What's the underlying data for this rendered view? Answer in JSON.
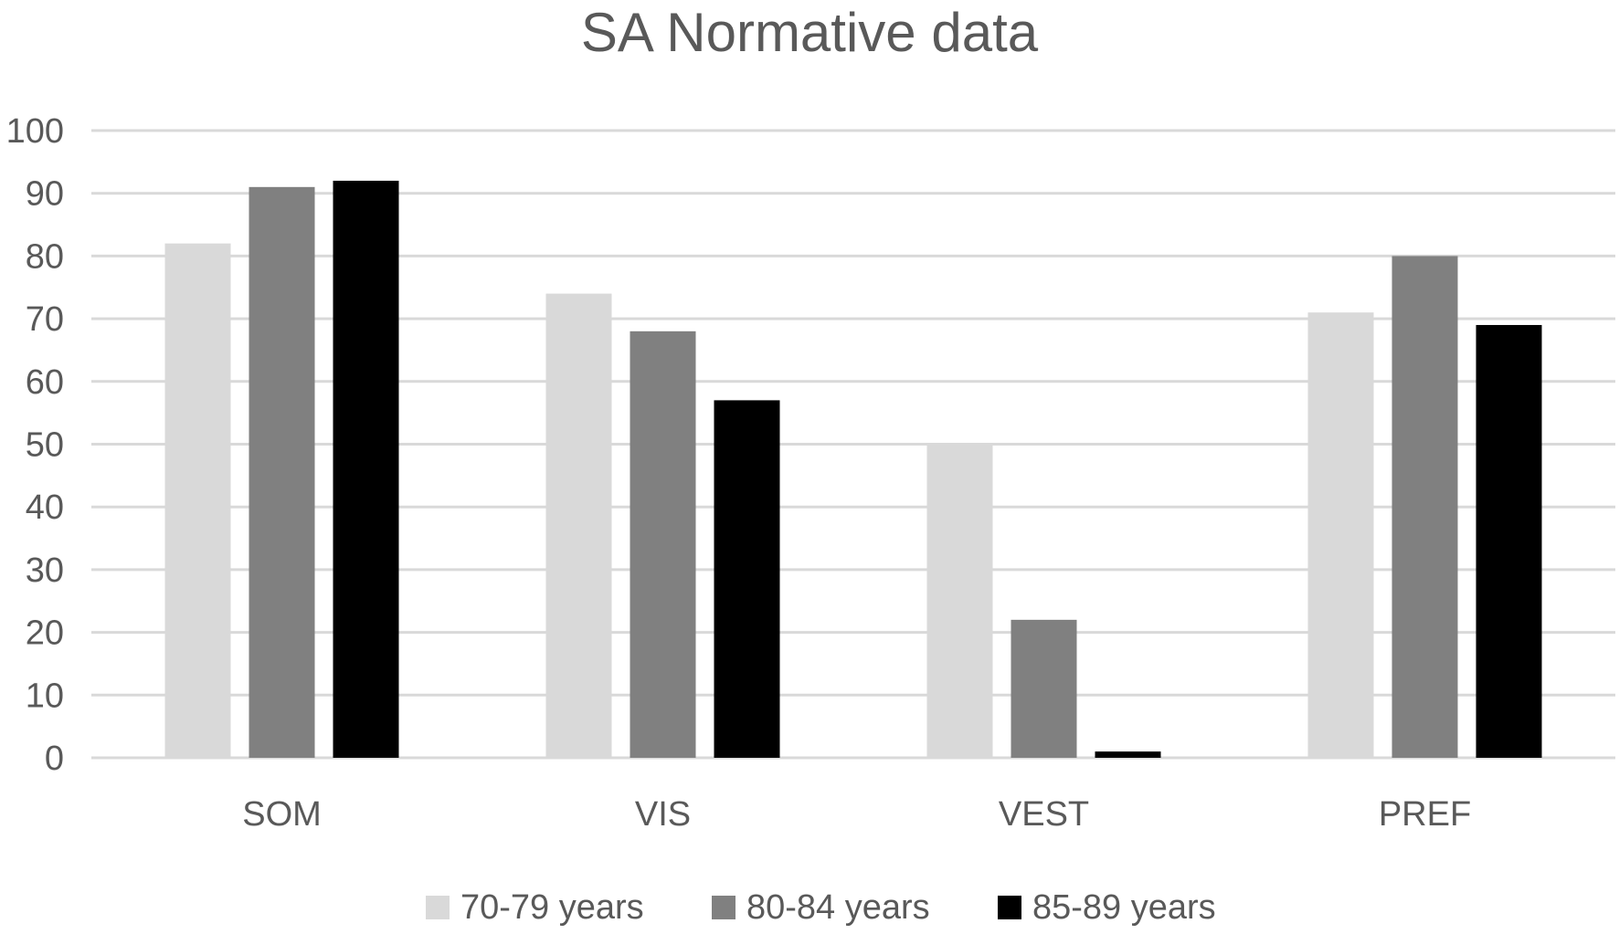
{
  "chart_data": {
    "type": "bar",
    "title": "SA Normative data",
    "xlabel": "",
    "ylabel": "",
    "categories": [
      "SOM",
      "VIS",
      "VEST",
      "PREF"
    ],
    "series": [
      {
        "name": "70-79 years",
        "color": "#d9d9d9",
        "values": [
          82,
          74,
          50,
          71
        ]
      },
      {
        "name": "80-84 years",
        "color": "#808080",
        "values": [
          91,
          68,
          22,
          80
        ]
      },
      {
        "name": "85-89 years",
        "color": "#000000",
        "values": [
          92,
          57,
          1,
          69
        ]
      }
    ],
    "ylim": [
      0,
      100
    ],
    "yticks": [
      0,
      10,
      20,
      30,
      40,
      50,
      60,
      70,
      80,
      90,
      100
    ],
    "grid": true,
    "legend_position": "bottom"
  }
}
